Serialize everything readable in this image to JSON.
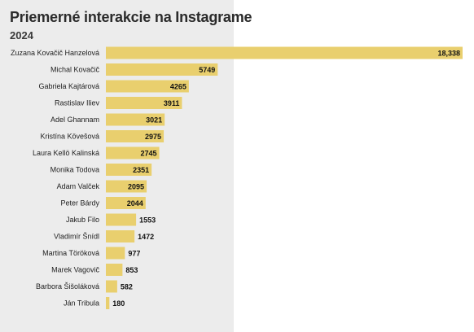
{
  "header": {
    "title": "Priemerné interakcie na Instagrame",
    "subtitle": "2024"
  },
  "colors": {
    "bar": "#e9cf6e",
    "panel": "#ececec"
  },
  "chart_data": {
    "type": "bar",
    "orientation": "horizontal",
    "title": "Priemerné interakcie na Instagrame",
    "subtitle": "2024",
    "xlabel": "",
    "ylabel": "",
    "grid": false,
    "legend": "none",
    "xlim": [
      0,
      18338
    ],
    "categories": [
      "Zuzana Kovačič Hanzelová",
      "Michal Kovačič",
      "Gabriela Kajtárová",
      "Rastislav Iliev",
      "Adel Ghannam",
      "Kristína Kövešová",
      "Laura Kellö Kalinská",
      "Monika Todova",
      "Adam Valček",
      "Peter Bárdy",
      "Jakub Filo",
      "Vladimír Šnídl",
      "Martina Töröková",
      "Marek Vagovič",
      "Barbora Šišoláková",
      "Ján Tribula"
    ],
    "values": [
      18338,
      5749,
      4265,
      3911,
      3021,
      2975,
      2745,
      2351,
      2095,
      2044,
      1553,
      1472,
      977,
      853,
      582,
      180
    ],
    "value_labels": [
      "18,338",
      "5749",
      "4265",
      "3911",
      "3021",
      "2975",
      "2745",
      "2351",
      "2095",
      "2044",
      "1553",
      "1472",
      "977",
      "853",
      "582",
      "180"
    ]
  }
}
